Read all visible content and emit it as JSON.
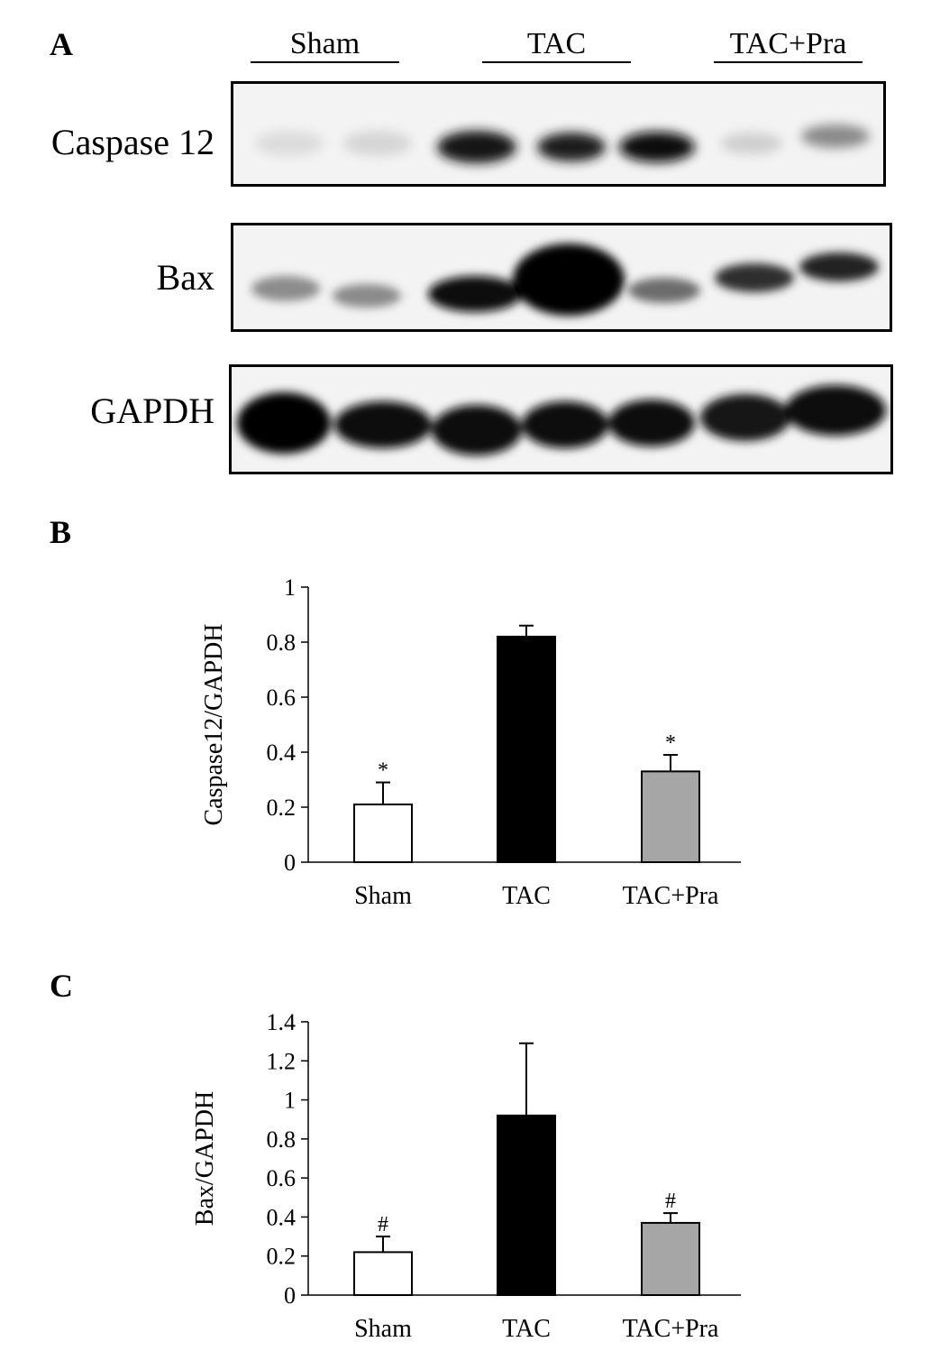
{
  "panel_a": {
    "label": "A",
    "groups": [
      "Sham",
      "TAC",
      "TAC+Pra"
    ],
    "proteins": [
      "Caspase 12",
      "Bax",
      "GAPDH"
    ]
  },
  "chart_data": [
    {
      "panel": "B",
      "type": "bar",
      "categories": [
        "Sham",
        "TAC",
        "TAC+Pra"
      ],
      "values": [
        0.21,
        0.82,
        0.33
      ],
      "error": [
        0.08,
        0.04,
        0.06
      ],
      "annotations": [
        "*",
        "",
        "*"
      ],
      "ylabel": "Caspase12/GAPDH",
      "xlabel": "",
      "title": "",
      "ylim": [
        0,
        1
      ],
      "yticks": [
        0,
        0.2,
        0.4,
        0.6,
        0.8,
        1
      ],
      "ytick_labels": [
        "0",
        "0.2",
        "0.4",
        "0.6",
        "0.8",
        "1"
      ],
      "bar_colors": [
        "#ffffff",
        "#000000",
        "#a6a6a6"
      ]
    },
    {
      "panel": "C",
      "type": "bar",
      "categories": [
        "Sham",
        "TAC",
        "TAC+Pra"
      ],
      "values": [
        0.22,
        0.92,
        0.37
      ],
      "error": [
        0.08,
        0.37,
        0.05
      ],
      "annotations": [
        "#",
        "",
        "#"
      ],
      "ylabel": "Bax/GAPDH",
      "xlabel": "",
      "title": "",
      "ylim": [
        0,
        1.4
      ],
      "yticks": [
        0,
        0.2,
        0.4,
        0.6,
        0.8,
        1,
        1.2,
        1.4
      ],
      "ytick_labels": [
        "0",
        "0.2",
        "0.4",
        "0.6",
        "0.8",
        "1",
        "1.2",
        "1.4"
      ],
      "bar_colors": [
        "#ffffff",
        "#000000",
        "#a6a6a6"
      ]
    }
  ]
}
